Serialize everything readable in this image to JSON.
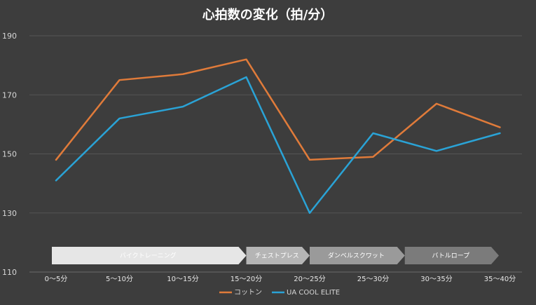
{
  "chart_data": {
    "type": "line",
    "title": "心拍数の変化（拍/分）",
    "categories": [
      "0～5分",
      "5～10分",
      "10～15分",
      "15～20分",
      "20～25分",
      "25～30分",
      "30～35分",
      "35～40分"
    ],
    "series": [
      {
        "name": "コットン",
        "values": [
          148,
          175,
          177,
          182,
          148,
          149,
          167,
          159
        ],
        "color": "#e07b3a"
      },
      {
        "name": "UA COOL ELITE",
        "values": [
          141,
          162,
          166,
          176,
          130,
          157,
          151,
          157
        ],
        "color": "#2aa3d6"
      }
    ],
    "ylim": [
      110,
      190
    ],
    "yticks": [
      110,
      130,
      150,
      170,
      190
    ],
    "grid": true,
    "legend": "bottom",
    "phases": [
      {
        "label": "バイクトレーニング",
        "start": 0,
        "end": 3,
        "color": "#e6e6e6"
      },
      {
        "label": "チェストプレス",
        "start": 3,
        "end": 4,
        "color": "#b5b5b5"
      },
      {
        "label": "ダンベルスクワット",
        "start": 4,
        "end": 5.5,
        "color": "#9a9a9a"
      },
      {
        "label": "バトルロープ",
        "start": 5.5,
        "end": 7,
        "color": "#7b7b7b"
      }
    ]
  }
}
